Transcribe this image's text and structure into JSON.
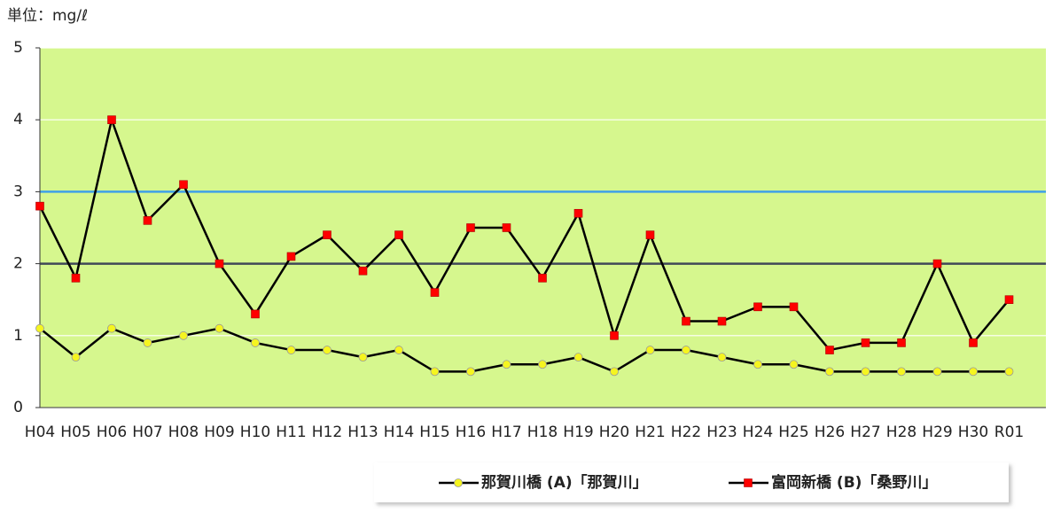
{
  "chart_data": {
    "type": "line",
    "unit_label": "単位：mg/ℓ",
    "categories": [
      "H04",
      "H05",
      "H06",
      "H07",
      "H08",
      "H09",
      "H10",
      "H11",
      "H12",
      "H13",
      "H14",
      "H15",
      "H16",
      "H17",
      "H18",
      "H19",
      "H20",
      "H21",
      "H22",
      "H23",
      "H24",
      "H25",
      "H26",
      "H27",
      "H28",
      "H29",
      "H30",
      "R01"
    ],
    "series": [
      {
        "name": "那賀川橋 (A)「那賀川」",
        "color": "#f5f520",
        "marker": "circle",
        "values": [
          1.1,
          0.7,
          1.1,
          0.9,
          1.0,
          1.1,
          0.9,
          0.8,
          0.8,
          0.7,
          0.8,
          0.5,
          0.5,
          0.6,
          0.6,
          0.7,
          0.5,
          0.8,
          0.8,
          0.7,
          0.6,
          0.6,
          0.5,
          0.5,
          0.5,
          0.5,
          0.5,
          0.5
        ]
      },
      {
        "name": "富岡新橋 (B)「桑野川」",
        "color": "#ff0000",
        "marker": "square",
        "values": [
          2.8,
          1.8,
          4.0,
          2.6,
          3.1,
          2.0,
          1.3,
          2.1,
          2.4,
          1.9,
          2.4,
          1.6,
          2.5,
          2.5,
          1.8,
          2.7,
          1.0,
          2.4,
          1.2,
          1.2,
          1.4,
          1.4,
          0.8,
          0.9,
          0.9,
          2.0,
          0.9,
          1.5
        ]
      }
    ],
    "reference_lines": [
      {
        "value": 3,
        "color": "#3fa0e8"
      },
      {
        "value": 2,
        "color": "#404858"
      }
    ],
    "ylim": [
      0,
      5
    ],
    "yticks": [
      0,
      1,
      2,
      3,
      4,
      5
    ],
    "grid": true,
    "plot_color": "#d6f78e",
    "line_color": "#000000"
  }
}
